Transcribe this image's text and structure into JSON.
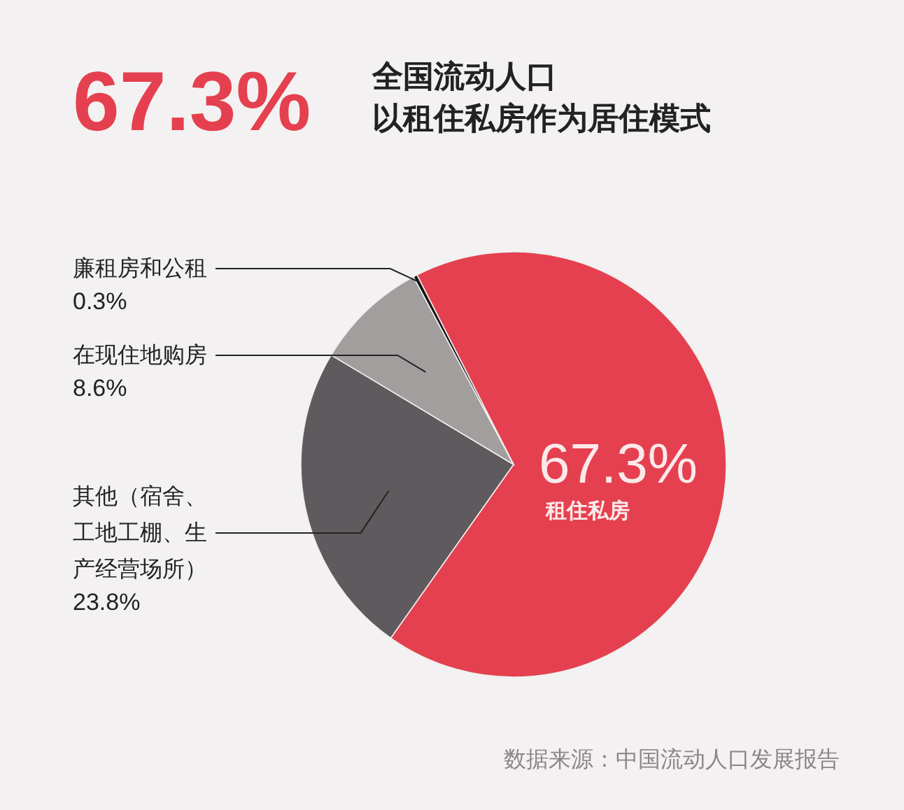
{
  "chart_data": {
    "type": "pie",
    "title": "67.3%",
    "subtitle": "全国流动人口以租住私房作为居住模式",
    "categories": [
      "租住私房",
      "其他（宿舍、工地工棚、生产经营场所）",
      "在现住地购房",
      "廉租房和公租"
    ],
    "values": [
      67.3,
      23.8,
      8.6,
      0.3
    ],
    "value_labels": [
      "67.3%",
      "23.8%",
      "8.6%",
      "0.3%"
    ],
    "colors": [
      "#e5404f",
      "#5f5a5d",
      "#a29e9e",
      "#1a1214"
    ],
    "annotations": [
      "数据来源：中国流动人口发展报告"
    ]
  }
}
